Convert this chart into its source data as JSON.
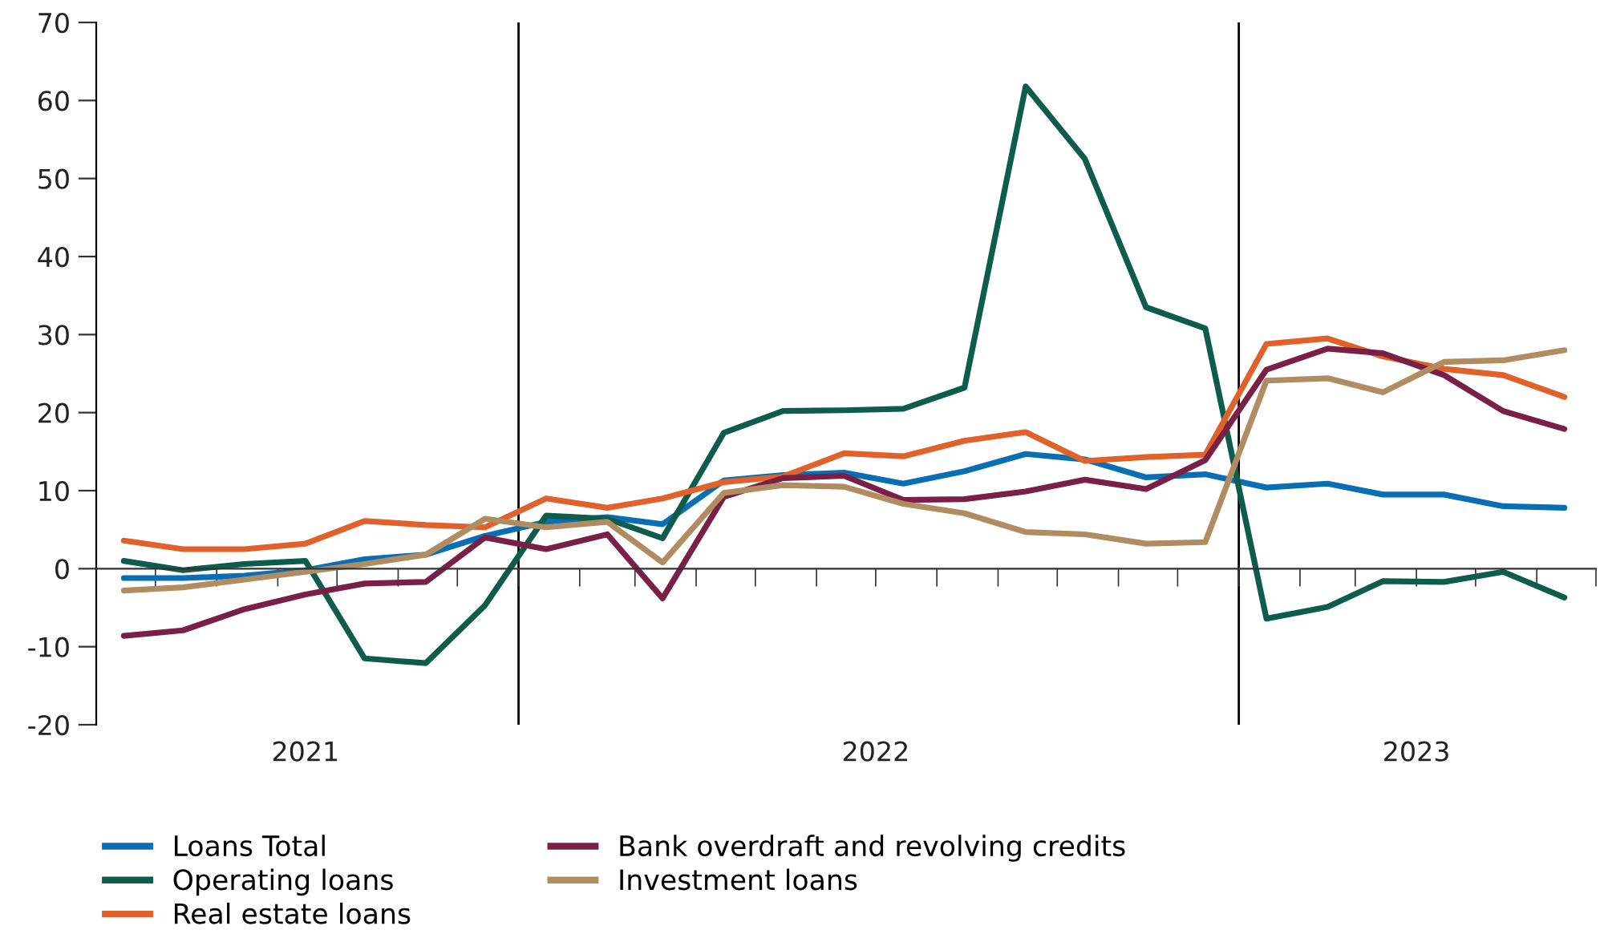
{
  "chart_data": {
    "type": "line",
    "x": [
      "2021-06-15",
      "2021-07-15",
      "2021-08-15",
      "2021-09-15",
      "2021-10-15",
      "2021-11-15",
      "2021-12-15",
      "2022-01-15",
      "2022-02-15",
      "2022-03-15",
      "2022-04-15",
      "2022-05-15",
      "2022-06-15",
      "2022-07-15",
      "2022-08-15",
      "2022-09-15",
      "2022-10-15",
      "2022-11-15",
      "2022-12-15",
      "2023-01-15",
      "2023-02-15",
      "2023-03-15",
      "2023-04-15",
      "2023-05-15",
      "2023-06-15"
    ],
    "series": [
      {
        "name": "Loans Total",
        "color": "#0a6eb4",
        "values": [
          -1.2,
          -1.2,
          -0.9,
          -0.2,
          1.2,
          1.8,
          4.2,
          6.0,
          6.6,
          5.7,
          11.3,
          12.0,
          12.3,
          10.9,
          12.5,
          14.7,
          14.0,
          11.7,
          12.1,
          10.4,
          10.9,
          9.5,
          9.5,
          8.0,
          7.8
        ]
      },
      {
        "name": "Operating loans",
        "color": "#0e5c4c",
        "values": [
          1.0,
          -0.2,
          0.6,
          1.0,
          -11.5,
          -12.1,
          -4.7,
          6.8,
          6.4,
          3.9,
          17.4,
          20.2,
          20.3,
          20.5,
          23.2,
          61.8,
          52.5,
          33.5,
          30.8,
          -6.4,
          -4.9,
          -1.6,
          -1.7,
          -0.4,
          -3.7
        ]
      },
      {
        "name": "Real estate loans",
        "color": "#e0622a",
        "values": [
          3.6,
          2.5,
          2.5,
          3.2,
          6.1,
          5.6,
          5.3,
          9.0,
          7.8,
          9.0,
          11.1,
          11.8,
          14.8,
          14.4,
          16.4,
          17.5,
          13.8,
          14.3,
          14.6,
          28.8,
          29.5,
          27.2,
          25.6,
          24.8,
          22.0
        ]
      },
      {
        "name": "Bank overdraft and revolving credits",
        "color": "#7a1f45",
        "values": [
          -8.6,
          -7.9,
          -5.2,
          -3.3,
          -1.9,
          -1.7,
          4.0,
          2.5,
          4.4,
          -3.8,
          9.2,
          11.6,
          11.9,
          8.8,
          8.9,
          9.9,
          11.4,
          10.2,
          13.9,
          25.5,
          28.2,
          27.6,
          24.8,
          20.2,
          17.9
        ]
      },
      {
        "name": "Investment loans",
        "color": "#b08c60",
        "values": [
          -2.8,
          -2.4,
          -1.4,
          -0.4,
          0.6,
          1.8,
          6.4,
          5.3,
          6.0,
          0.8,
          9.7,
          10.7,
          10.5,
          8.3,
          7.1,
          4.7,
          4.4,
          3.2,
          3.4,
          24.1,
          24.4,
          22.6,
          26.5,
          26.7,
          28.0
        ]
      }
    ],
    "xlim": [
      "2021-06-01",
      "2023-07-01"
    ],
    "xticks": [
      {
        "value": "2021-07-01",
        "label": null
      },
      {
        "value": "2021-08-01",
        "label": null
      },
      {
        "value": "2021-09-01",
        "label": null
      },
      {
        "value": "2021-10-01",
        "label": null
      },
      {
        "value": "2021-11-01",
        "label": null
      },
      {
        "value": "2021-12-01",
        "label": null
      },
      {
        "value": "2022-01-01",
        "label": null
      },
      {
        "value": "2022-02-01",
        "label": null
      },
      {
        "value": "2022-03-01",
        "label": null
      },
      {
        "value": "2022-04-01",
        "label": null
      },
      {
        "value": "2022-05-01",
        "label": null
      },
      {
        "value": "2022-06-01",
        "label": null
      },
      {
        "value": "2022-07-01",
        "label": null
      },
      {
        "value": "2022-08-01",
        "label": null
      },
      {
        "value": "2022-09-01",
        "label": null
      },
      {
        "value": "2022-10-01",
        "label": null
      },
      {
        "value": "2022-11-01",
        "label": null
      },
      {
        "value": "2022-12-01",
        "label": null
      },
      {
        "value": "2023-01-01",
        "label": null
      },
      {
        "value": "2023-02-01",
        "label": null
      },
      {
        "value": "2023-03-01",
        "label": null
      },
      {
        "value": "2023-04-01",
        "label": null
      },
      {
        "value": "2023-05-01",
        "label": null
      },
      {
        "value": "2023-06-01",
        "label": null
      },
      {
        "value": "2023-07-01",
        "label": null
      },
      {
        "value": "2021-09-15",
        "label": "2021"
      },
      {
        "value": "2022-07-01",
        "label": "2022"
      },
      {
        "value": "2023-04-01",
        "label": "2023"
      }
    ],
    "ylim": [
      -20,
      70
    ],
    "yticks": [
      -20,
      -10,
      0,
      10,
      20,
      30,
      40,
      50,
      60,
      70
    ],
    "ref_lines": [
      {
        "axis": "x",
        "value": "2022-01-01",
        "color": "#000000"
      },
      {
        "axis": "x",
        "value": "2023-01-01",
        "color": "#000000"
      }
    ],
    "grid": false,
    "legend": "bottom",
    "marker": "none",
    "line_style": "solid"
  }
}
